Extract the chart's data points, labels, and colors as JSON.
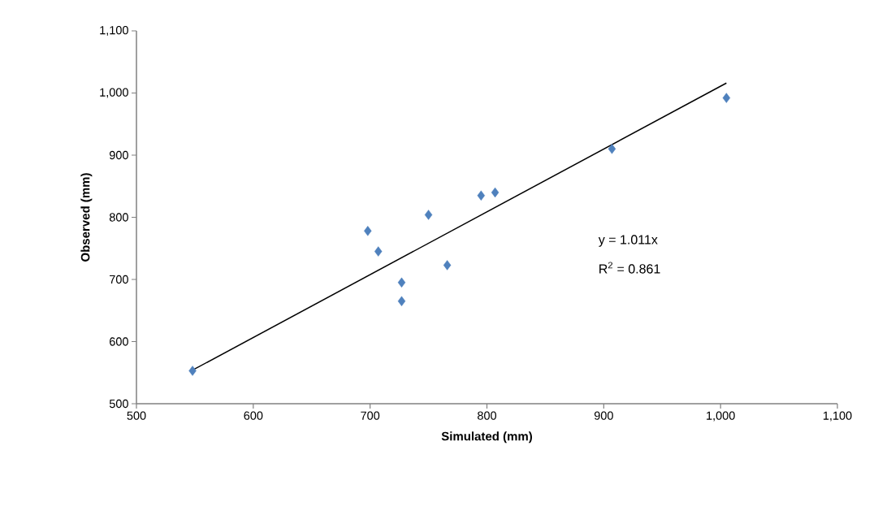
{
  "chart_data": {
    "type": "scatter",
    "xlabel": "Simulated (mm)",
    "ylabel": "Observed (mm)",
    "xlim": [
      500,
      1100
    ],
    "ylim": [
      500,
      1100
    ],
    "xticks": [
      500,
      600,
      700,
      800,
      900,
      {
        "value": 1000,
        "label": "1,000"
      },
      {
        "value": 1100,
        "label": "1,100"
      }
    ],
    "yticks": [
      500,
      600,
      700,
      800,
      900,
      {
        "value": 1000,
        "label": "1,000"
      },
      {
        "value": 1100,
        "label": "1,100"
      }
    ],
    "grid": false,
    "marker": "diamond",
    "series": [
      {
        "color": "#4f81bd",
        "x": [
          548,
          698,
          707,
          727,
          727,
          750,
          766,
          795,
          807,
          907,
          1005
        ],
        "values": [
          553,
          778,
          745,
          695,
          665,
          804,
          723,
          835,
          840,
          910,
          992
        ]
      },
      {
        "type": "line",
        "color": "#000000",
        "marker": "none",
        "line_style": "solid",
        "x": [
          548,
          1005
        ],
        "values": [
          554,
          1016
        ]
      }
    ],
    "annotations": [
      "y = 1.011x",
      "R$^{2}$ = 0.861"
    ]
  }
}
